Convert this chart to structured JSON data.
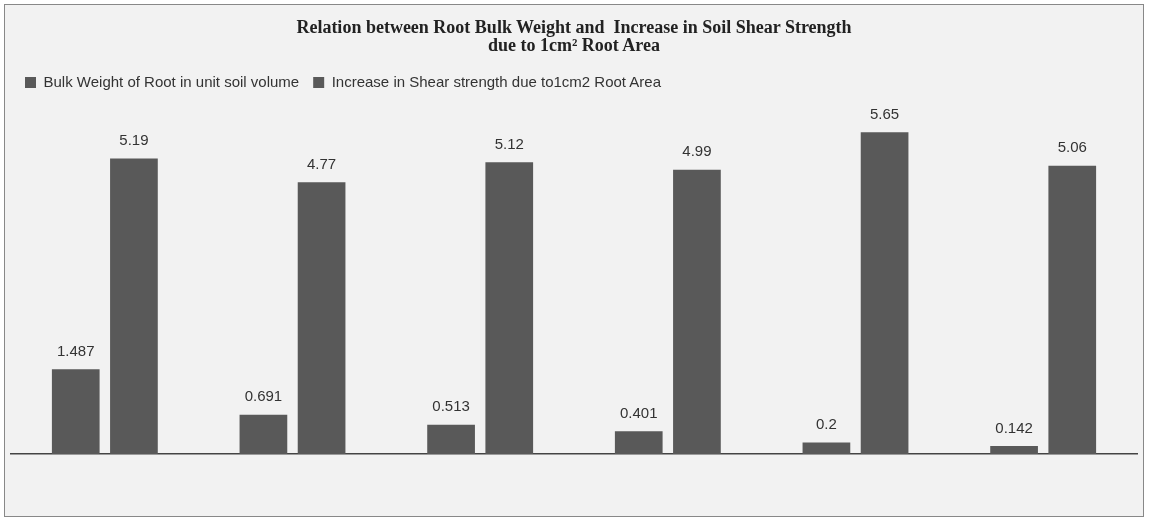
{
  "chart_data": {
    "type": "bar",
    "title": "Relation between Root Bulk Weight and  Increase in Soil Shear Strength\ndue to 1cm² Root Area",
    "categories": [
      null,
      null,
      null,
      null,
      null,
      null
    ],
    "series": [
      {
        "name": "Bulk Weight of Root in unit soil volume",
        "color": "#595959",
        "values": [
          1.487,
          0.691,
          0.513,
          0.401,
          0.2,
          0.142
        ]
      },
      {
        "name": "Increase in Shear strength due to1cm2 Root Area",
        "color": "#595959",
        "values": [
          5.19,
          4.77,
          5.12,
          4.99,
          5.65,
          5.06
        ]
      }
    ],
    "data_labels": true,
    "grid": false,
    "legend": "top",
    "tick_labels": false
  }
}
